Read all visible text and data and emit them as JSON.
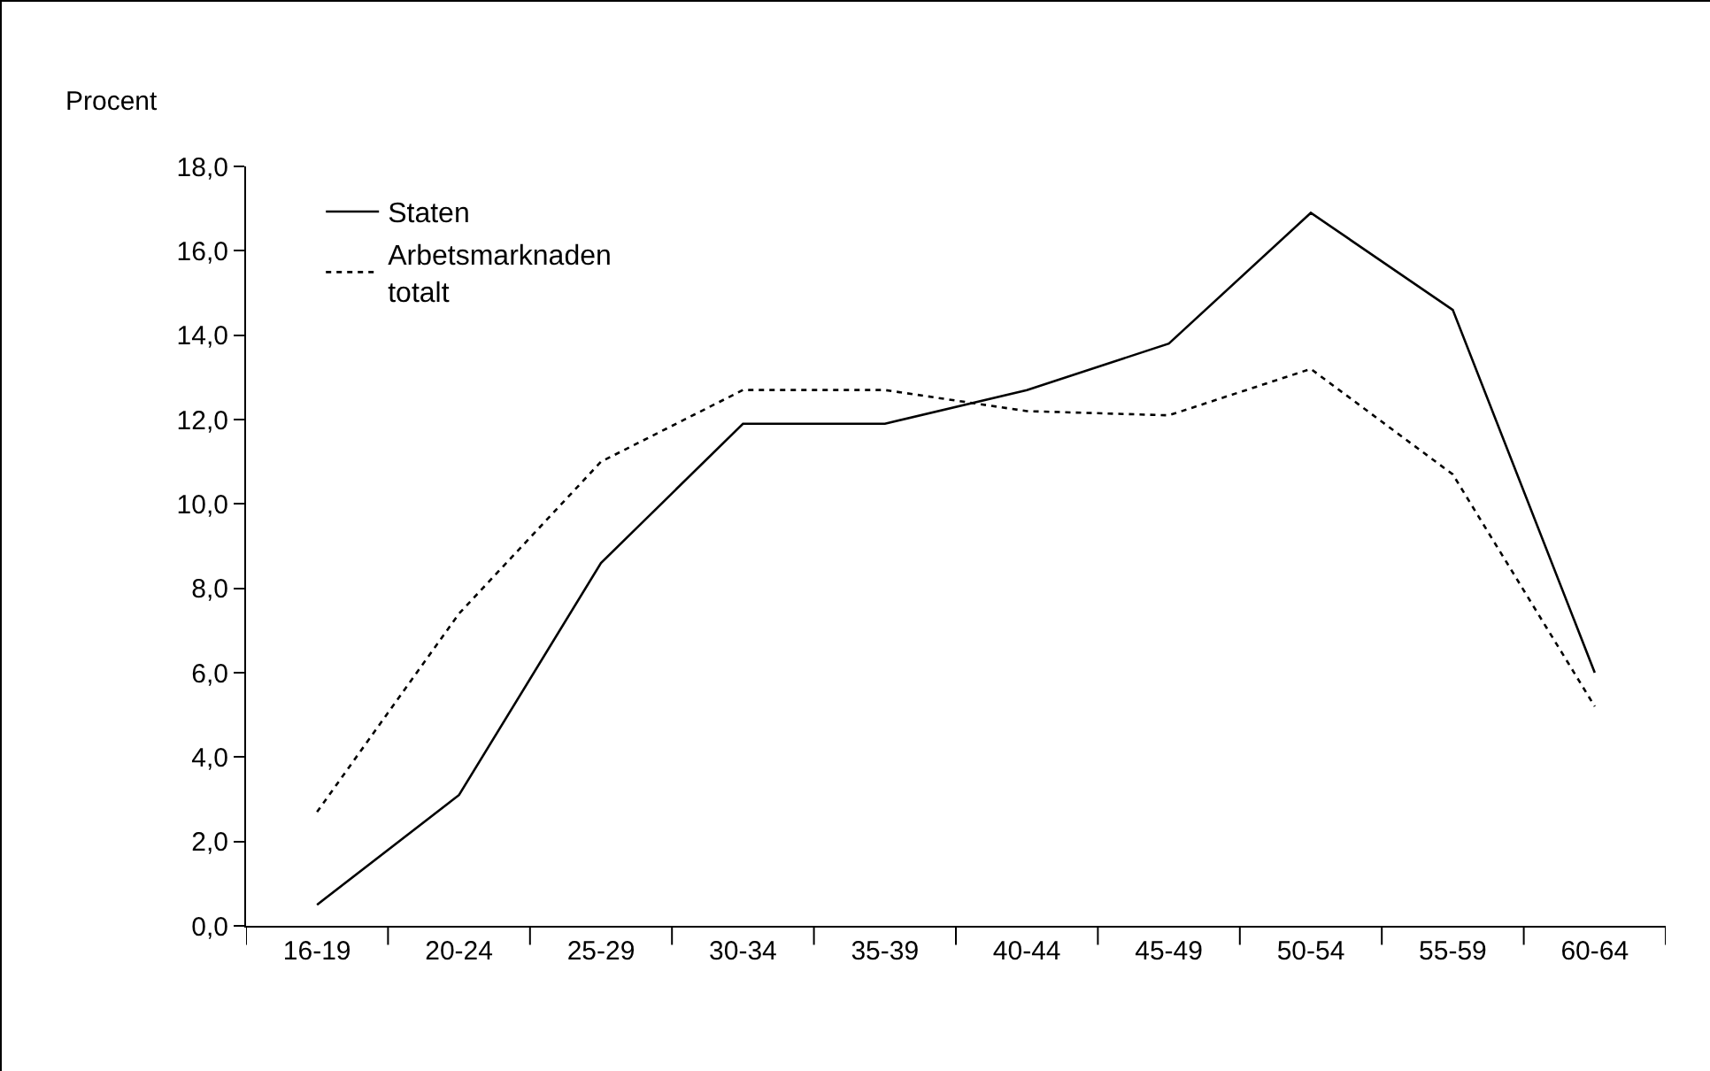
{
  "chart_data": {
    "type": "line",
    "ylabel": "Procent",
    "categories": [
      "16-19",
      "20-24",
      "25-29",
      "30-34",
      "35-39",
      "40-44",
      "45-49",
      "50-54",
      "55-59",
      "60-64"
    ],
    "series": [
      {
        "name": "Staten",
        "color": "#000000",
        "line_style": "solid",
        "values": [
          0.5,
          3.1,
          8.6,
          11.9,
          11.9,
          12.7,
          13.8,
          16.9,
          14.6,
          6.0
        ]
      },
      {
        "name": "Arbetsmarknaden totalt",
        "color": "#000000",
        "line_style": "dotted",
        "values": [
          2.7,
          7.4,
          11.0,
          12.7,
          12.7,
          12.2,
          12.1,
          13.2,
          10.7,
          5.2
        ]
      }
    ],
    "ylim": [
      0,
      18
    ],
    "yticks": [
      {
        "value": 0,
        "label": "0,0"
      },
      {
        "value": 2,
        "label": "2,0"
      },
      {
        "value": 4,
        "label": "4,0"
      },
      {
        "value": 6,
        "label": "6,0"
      },
      {
        "value": 8,
        "label": "8,0"
      },
      {
        "value": 10,
        "label": "10,0"
      },
      {
        "value": 12,
        "label": "12,0"
      },
      {
        "value": 14,
        "label": "14,0"
      },
      {
        "value": 16,
        "label": "16,0"
      },
      {
        "value": 18,
        "label": "18,0"
      }
    ],
    "grid": false,
    "legend": "top left",
    "marker": "none"
  }
}
